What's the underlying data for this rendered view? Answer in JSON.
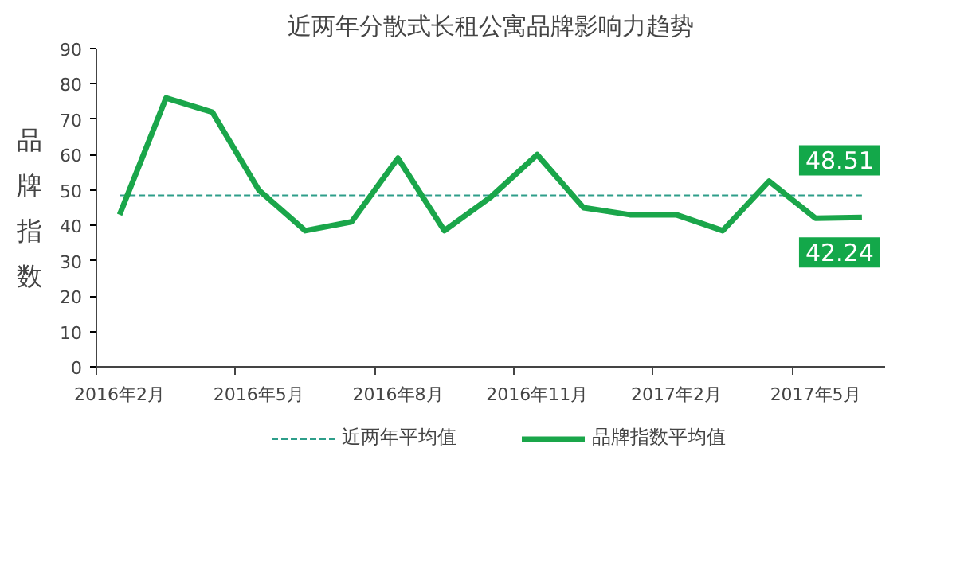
{
  "chart_data": {
    "type": "line",
    "title": "近两年分散式长租公寓品牌影响力趋势",
    "ylabel": "品牌指数",
    "categories": [
      "2016年2月",
      null,
      null,
      "2016年5月",
      null,
      null,
      "2016年8月",
      null,
      null,
      "2016年11月",
      null,
      null,
      "2017年2月",
      null,
      null,
      "2017年5月",
      null
    ],
    "series": [
      {
        "name": "近两年平均值",
        "color": "#2e9e8a",
        "line_style": "dashed",
        "values": [
          48.51,
          48.51,
          48.51,
          48.51,
          48.51,
          48.51,
          48.51,
          48.51,
          48.51,
          48.51,
          48.51,
          48.51,
          48.51,
          48.51,
          48.51,
          48.51,
          48.51
        ],
        "value_labels": [
          null,
          null,
          null,
          null,
          null,
          null,
          null,
          null,
          null,
          null,
          null,
          null,
          null,
          null,
          null,
          null,
          "48.51"
        ]
      },
      {
        "name": "品牌指数平均值",
        "color": "#1aa64a",
        "line_style": "solid",
        "values": [
          43,
          76,
          72,
          50,
          38.5,
          41,
          59,
          38.5,
          48,
          60,
          45,
          43,
          43,
          38.5,
          52.5,
          42,
          42.24
        ],
        "value_labels": [
          null,
          null,
          null,
          null,
          null,
          null,
          null,
          null,
          null,
          null,
          null,
          null,
          null,
          null,
          null,
          null,
          "42.24"
        ]
      }
    ],
    "ylim": [
      0,
      90
    ],
    "yticks": [
      0,
      10,
      20,
      30,
      40,
      50,
      60,
      70,
      80,
      90
    ],
    "grid": false,
    "legend": "bottom",
    "marker": "none"
  }
}
